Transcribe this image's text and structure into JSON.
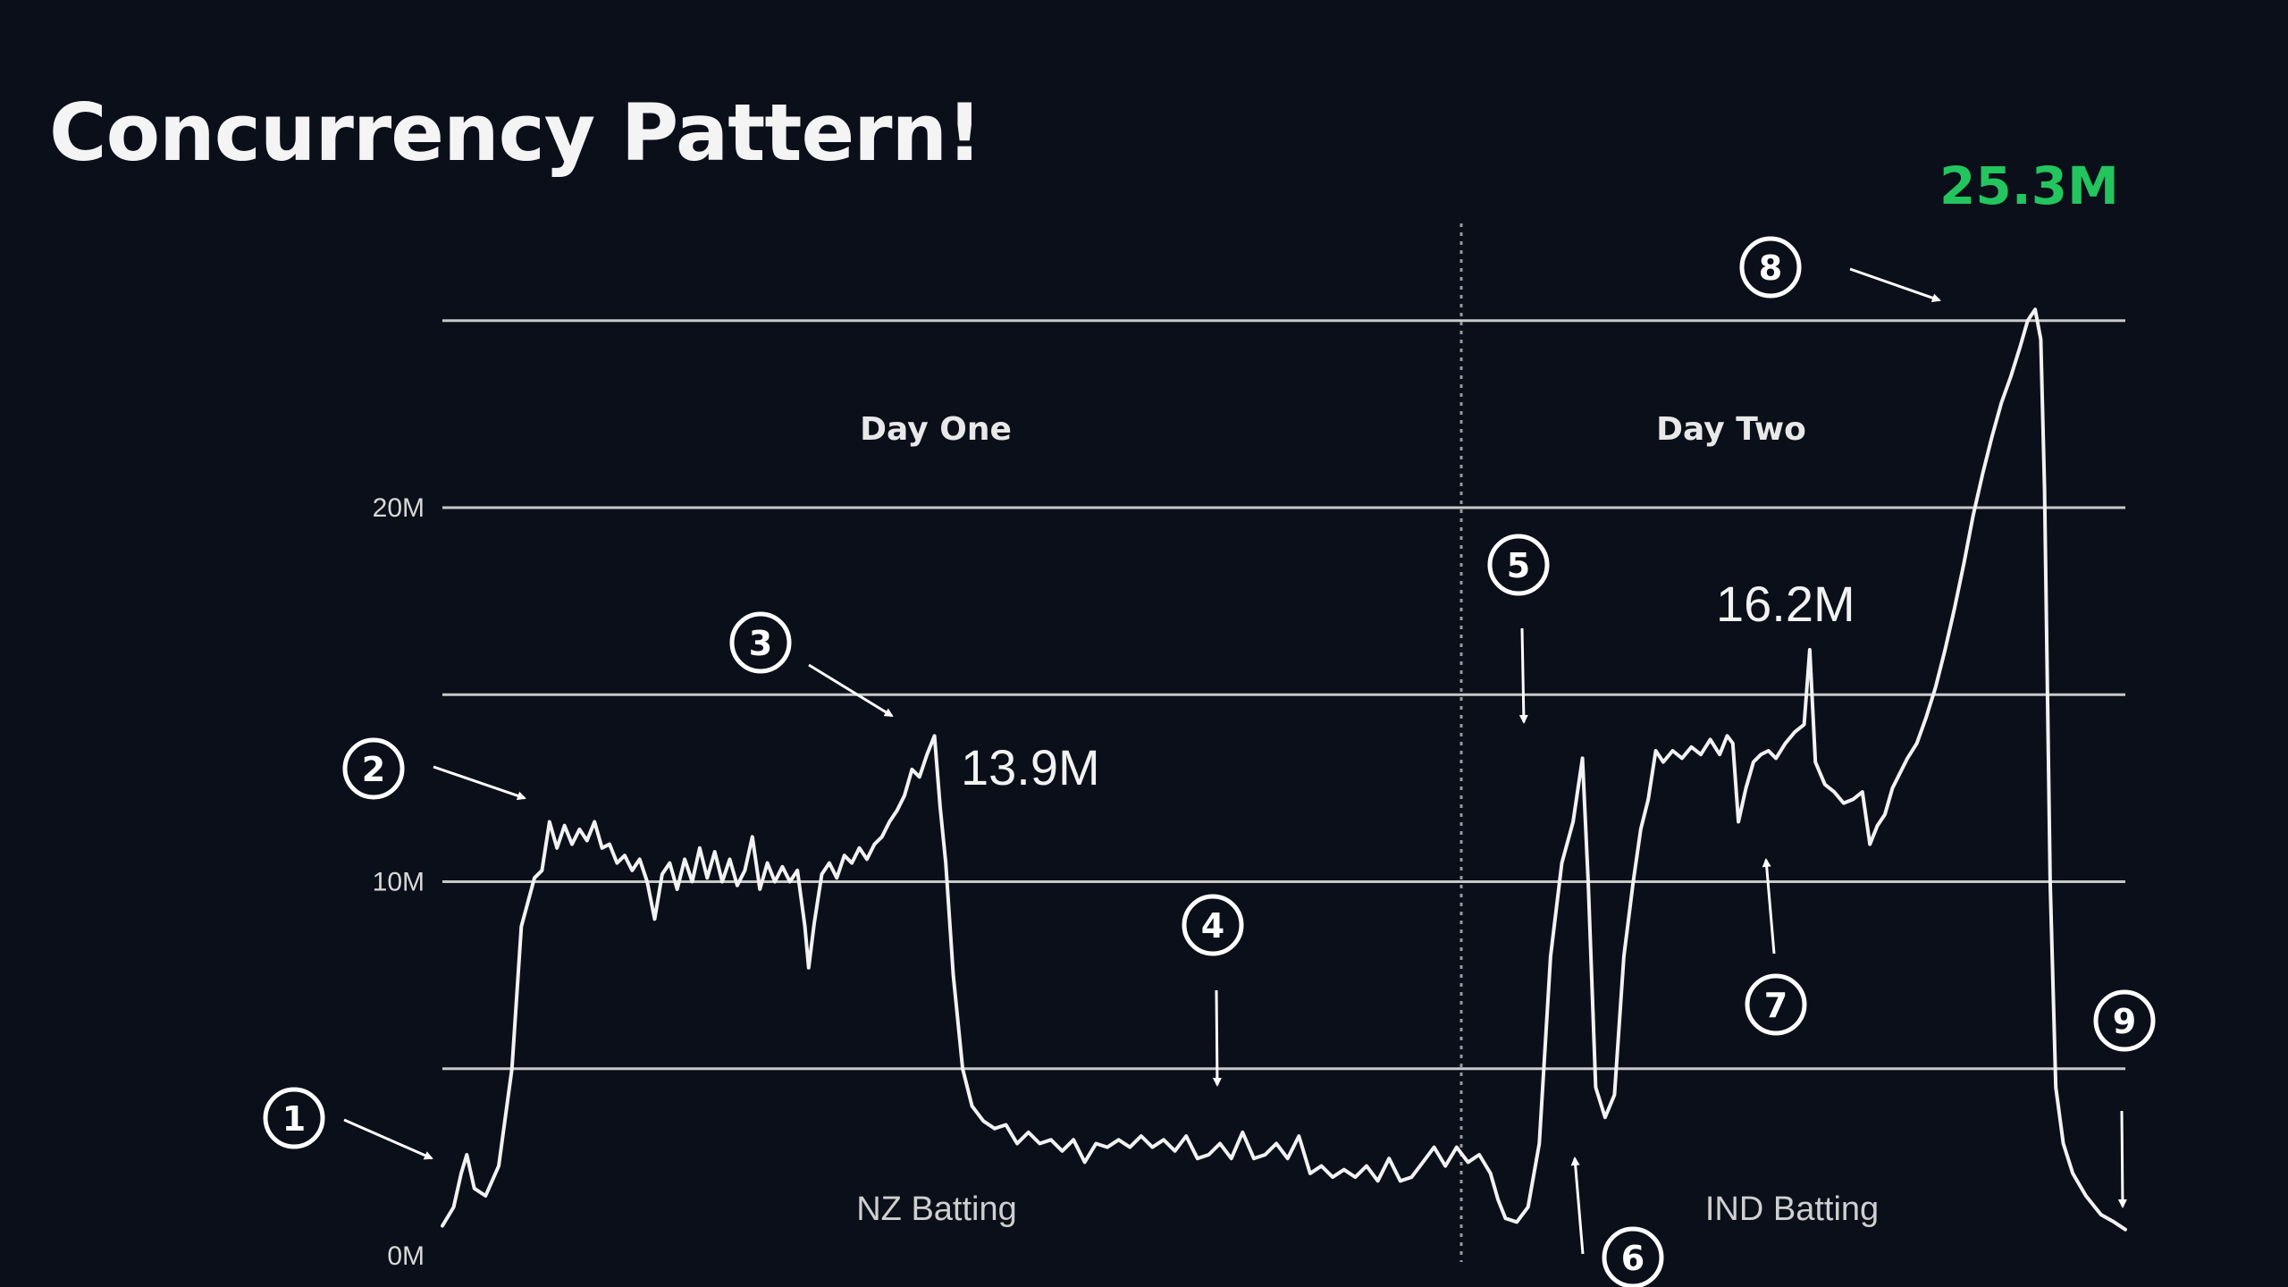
{
  "title": "Concurrency Pattern!",
  "colors": {
    "background": "#0b0f1a",
    "line": "#f2f2f2",
    "grid": "#c8c8c8",
    "peak_label": "#22c55e"
  },
  "chart_data": {
    "type": "line",
    "title": "Concurrency Pattern!",
    "xlabel": "",
    "ylabel": "",
    "ylim": [
      0,
      25.3
    ],
    "y_unit": "M",
    "grid": true,
    "y_ticks": [
      {
        "value": 0,
        "label": "0M"
      },
      {
        "value": 10,
        "label": "10M"
      },
      {
        "value": 20,
        "label": "20M"
      }
    ],
    "gridlines": [
      5,
      10,
      15,
      20,
      25
    ],
    "day_labels": [
      "Day One",
      "Day Two"
    ],
    "innings_labels": [
      "NZ Batting",
      "IND Batting"
    ],
    "value_labels": [
      {
        "text": "13.9M",
        "value": 13.9
      },
      {
        "text": "16.2M",
        "value": 16.2
      }
    ],
    "peak_label": {
      "text": "25.3M",
      "value": 25.3
    },
    "markers": [
      "1",
      "2",
      "3",
      "4",
      "5",
      "6",
      "7",
      "8",
      "9"
    ],
    "series": [
      {
        "values": [
          [
            0.0,
            0.8
          ],
          [
            0.6,
            1.3
          ],
          [
            1.0,
            2.2
          ],
          [
            1.3,
            2.7
          ],
          [
            1.7,
            1.8
          ],
          [
            2.3,
            1.6
          ],
          [
            3.0,
            2.4
          ],
          [
            3.7,
            5.0
          ],
          [
            4.2,
            8.8
          ],
          [
            4.9,
            10.1
          ],
          [
            5.3,
            10.3
          ],
          [
            5.7,
            11.6
          ],
          [
            6.1,
            10.9
          ],
          [
            6.5,
            11.5
          ],
          [
            6.9,
            11.0
          ],
          [
            7.3,
            11.4
          ],
          [
            7.7,
            11.1
          ],
          [
            8.1,
            11.6
          ],
          [
            8.5,
            10.9
          ],
          [
            8.9,
            11.0
          ],
          [
            9.3,
            10.5
          ],
          [
            9.7,
            10.7
          ],
          [
            10.1,
            10.3
          ],
          [
            10.5,
            10.6
          ],
          [
            10.9,
            10.0
          ],
          [
            11.3,
            9.0
          ],
          [
            11.7,
            10.2
          ],
          [
            12.1,
            10.5
          ],
          [
            12.5,
            9.8
          ],
          [
            12.9,
            10.6
          ],
          [
            13.3,
            10.0
          ],
          [
            13.7,
            10.9
          ],
          [
            14.1,
            10.1
          ],
          [
            14.5,
            10.8
          ],
          [
            14.9,
            10.0
          ],
          [
            15.3,
            10.6
          ],
          [
            15.7,
            9.9
          ],
          [
            16.1,
            10.3
          ],
          [
            16.5,
            11.2
          ],
          [
            16.9,
            9.8
          ],
          [
            17.3,
            10.5
          ],
          [
            17.7,
            10.0
          ],
          [
            18.1,
            10.4
          ],
          [
            18.5,
            10.0
          ],
          [
            18.9,
            10.3
          ],
          [
            19.3,
            8.8
          ],
          [
            19.5,
            7.7
          ],
          [
            19.8,
            8.9
          ],
          [
            20.2,
            10.2
          ],
          [
            20.6,
            10.5
          ],
          [
            21.0,
            10.1
          ],
          [
            21.4,
            10.7
          ],
          [
            21.8,
            10.5
          ],
          [
            22.2,
            10.9
          ],
          [
            22.6,
            10.6
          ],
          [
            23.0,
            11.0
          ],
          [
            23.4,
            11.2
          ],
          [
            23.8,
            11.6
          ],
          [
            24.2,
            11.9
          ],
          [
            24.6,
            12.3
          ],
          [
            25.0,
            13.0
          ],
          [
            25.4,
            12.8
          ],
          [
            25.8,
            13.4
          ],
          [
            26.2,
            13.9
          ],
          [
            26.5,
            12.0
          ],
          [
            26.8,
            10.5
          ],
          [
            27.2,
            7.5
          ],
          [
            27.7,
            5.0
          ],
          [
            28.2,
            4.0
          ],
          [
            28.8,
            3.6
          ],
          [
            29.4,
            3.4
          ],
          [
            30.0,
            3.5
          ],
          [
            30.6,
            3.0
          ],
          [
            31.2,
            3.3
          ],
          [
            31.8,
            3.0
          ],
          [
            32.4,
            3.1
          ],
          [
            33.0,
            2.8
          ],
          [
            33.6,
            3.1
          ],
          [
            34.2,
            2.5
          ],
          [
            34.8,
            3.0
          ],
          [
            35.4,
            2.9
          ],
          [
            36.0,
            3.1
          ],
          [
            36.6,
            2.9
          ],
          [
            37.2,
            3.2
          ],
          [
            37.8,
            2.9
          ],
          [
            38.4,
            3.1
          ],
          [
            39.0,
            2.8
          ],
          [
            39.6,
            3.2
          ],
          [
            40.2,
            2.6
          ],
          [
            40.8,
            2.7
          ],
          [
            41.4,
            3.0
          ],
          [
            42.0,
            2.6
          ],
          [
            42.6,
            3.3
          ],
          [
            43.2,
            2.6
          ],
          [
            43.8,
            2.7
          ],
          [
            44.4,
            3.0
          ],
          [
            45.0,
            2.6
          ],
          [
            45.6,
            3.2
          ],
          [
            46.2,
            2.2
          ],
          [
            46.8,
            2.4
          ],
          [
            47.4,
            2.1
          ],
          [
            48.0,
            2.3
          ],
          [
            48.6,
            2.1
          ],
          [
            49.2,
            2.4
          ],
          [
            49.8,
            2.0
          ],
          [
            50.4,
            2.6
          ],
          [
            51.0,
            2.0
          ],
          [
            51.6,
            2.1
          ],
          [
            52.2,
            2.5
          ],
          [
            52.8,
            2.9
          ],
          [
            53.4,
            2.4
          ],
          [
            54.0,
            2.9
          ],
          [
            54.6,
            2.5
          ],
          [
            55.2,
            2.7
          ],
          [
            55.8,
            2.2
          ],
          [
            56.2,
            1.5
          ],
          [
            56.6,
            1.0
          ],
          [
            57.2,
            0.9
          ],
          [
            57.8,
            1.3
          ],
          [
            58.4,
            3.0
          ],
          [
            59.0,
            8.0
          ],
          [
            59.6,
            10.5
          ],
          [
            60.2,
            11.6
          ],
          [
            60.7,
            13.3
          ],
          [
            61.0,
            10.0
          ],
          [
            61.4,
            4.5
          ],
          [
            61.9,
            3.7
          ],
          [
            62.4,
            4.3
          ],
          [
            62.9,
            8.0
          ],
          [
            63.4,
            10.0
          ],
          [
            63.8,
            11.4
          ],
          [
            64.2,
            12.2
          ],
          [
            64.6,
            13.5
          ],
          [
            65.0,
            13.2
          ],
          [
            65.5,
            13.5
          ],
          [
            66.0,
            13.3
          ],
          [
            66.5,
            13.6
          ],
          [
            67.0,
            13.4
          ],
          [
            67.5,
            13.8
          ],
          [
            68.0,
            13.4
          ],
          [
            68.4,
            13.9
          ],
          [
            68.7,
            13.7
          ],
          [
            69.0,
            11.6
          ],
          [
            69.4,
            12.5
          ],
          [
            69.8,
            13.2
          ],
          [
            70.2,
            13.4
          ],
          [
            70.6,
            13.5
          ],
          [
            71.0,
            13.3
          ],
          [
            71.5,
            13.7
          ],
          [
            72.0,
            14.0
          ],
          [
            72.5,
            14.2
          ],
          [
            72.8,
            16.2
          ],
          [
            73.1,
            13.2
          ],
          [
            73.6,
            12.6
          ],
          [
            74.1,
            12.4
          ],
          [
            74.6,
            12.1
          ],
          [
            75.1,
            12.2
          ],
          [
            75.6,
            12.4
          ],
          [
            76.0,
            11.0
          ],
          [
            76.4,
            11.5
          ],
          [
            76.8,
            11.8
          ],
          [
            77.2,
            12.5
          ],
          [
            77.6,
            12.9
          ],
          [
            78.0,
            13.3
          ],
          [
            78.5,
            13.7
          ],
          [
            79.0,
            14.4
          ],
          [
            79.5,
            15.2
          ],
          [
            80.0,
            16.2
          ],
          [
            80.5,
            17.3
          ],
          [
            81.0,
            18.5
          ],
          [
            81.5,
            19.8
          ],
          [
            82.0,
            20.9
          ],
          [
            82.5,
            21.9
          ],
          [
            83.0,
            22.8
          ],
          [
            83.5,
            23.5
          ],
          [
            84.0,
            24.3
          ],
          [
            84.4,
            25.0
          ],
          [
            84.8,
            25.3
          ],
          [
            85.1,
            24.5
          ],
          [
            85.3,
            20.5
          ],
          [
            85.6,
            10.0
          ],
          [
            85.9,
            4.5
          ],
          [
            86.3,
            3.0
          ],
          [
            86.8,
            2.2
          ],
          [
            87.5,
            1.6
          ],
          [
            88.3,
            1.1
          ],
          [
            89.0,
            0.9
          ],
          [
            89.6,
            0.7
          ]
        ]
      }
    ],
    "x_range": [
      0,
      89.6
    ],
    "day_boundary": 57.2
  }
}
